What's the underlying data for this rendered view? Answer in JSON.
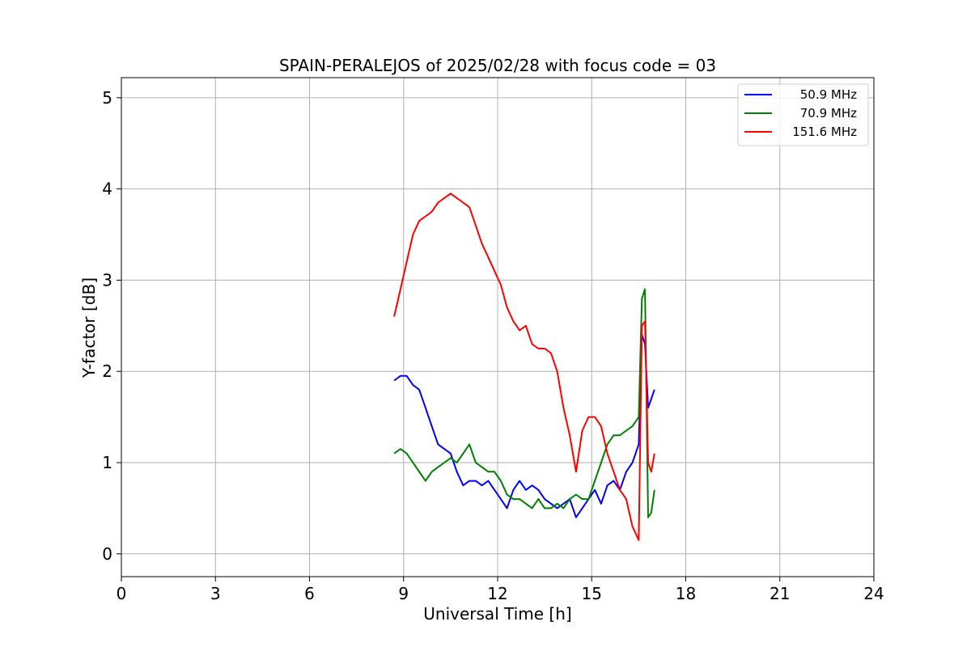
{
  "chart_data": {
    "type": "line",
    "title": "SPAIN-PERALEJOS of 2025/02/28 with focus code = 03",
    "xlabel": "Universal Time [h]",
    "ylabel": "Y-factor [dB]",
    "xlim": [
      0,
      24
    ],
    "ylim": [
      -0.25,
      5.22
    ],
    "xticks": [
      0,
      3,
      6,
      9,
      12,
      15,
      18,
      21,
      24
    ],
    "yticks": [
      0,
      1,
      2,
      3,
      4,
      5
    ],
    "grid": true,
    "legend_position": "top-right",
    "series": [
      {
        "name": "50.9 MHz",
        "color": "#0000ff",
        "x": [
          8.7,
          8.9,
          9.1,
          9.3,
          9.5,
          9.7,
          9.9,
          10.1,
          10.3,
          10.5,
          10.7,
          10.9,
          11.1,
          11.3,
          11.5,
          11.7,
          11.9,
          12.1,
          12.3,
          12.5,
          12.7,
          12.9,
          13.1,
          13.3,
          13.5,
          13.7,
          13.9,
          14.1,
          14.3,
          14.5,
          14.7,
          14.9,
          15.1,
          15.3,
          15.5,
          15.7,
          15.9,
          16.1,
          16.3,
          16.5,
          16.6,
          16.7,
          16.8,
          16.9,
          17.0
        ],
        "y": [
          1.9,
          1.95,
          1.95,
          1.85,
          1.8,
          1.6,
          1.4,
          1.2,
          1.15,
          1.1,
          0.9,
          0.75,
          0.8,
          0.8,
          0.75,
          0.8,
          0.7,
          0.6,
          0.5,
          0.7,
          0.8,
          0.7,
          0.75,
          0.7,
          0.6,
          0.55,
          0.5,
          0.55,
          0.6,
          0.4,
          0.5,
          0.6,
          0.7,
          0.55,
          0.75,
          0.8,
          0.7,
          0.9,
          1.0,
          1.2,
          2.4,
          2.3,
          1.6,
          1.7,
          1.8
        ]
      },
      {
        "name": "70.9 MHz",
        "color": "#008000",
        "x": [
          8.7,
          8.9,
          9.1,
          9.3,
          9.5,
          9.7,
          9.9,
          10.1,
          10.3,
          10.5,
          10.7,
          10.9,
          11.1,
          11.3,
          11.5,
          11.7,
          11.9,
          12.1,
          12.3,
          12.5,
          12.7,
          12.9,
          13.1,
          13.3,
          13.5,
          13.7,
          13.9,
          14.1,
          14.3,
          14.5,
          14.7,
          14.9,
          15.1,
          15.3,
          15.5,
          15.7,
          15.9,
          16.1,
          16.3,
          16.5,
          16.6,
          16.7,
          16.8,
          16.9,
          17.0
        ],
        "y": [
          1.1,
          1.15,
          1.1,
          1.0,
          0.9,
          0.8,
          0.9,
          0.95,
          1.0,
          1.05,
          1.0,
          1.1,
          1.2,
          1.0,
          0.95,
          0.9,
          0.9,
          0.8,
          0.65,
          0.6,
          0.6,
          0.55,
          0.5,
          0.6,
          0.5,
          0.5,
          0.55,
          0.5,
          0.6,
          0.65,
          0.6,
          0.6,
          0.8,
          1.0,
          1.2,
          1.3,
          1.3,
          1.35,
          1.4,
          1.5,
          2.8,
          2.9,
          0.4,
          0.45,
          0.7
        ]
      },
      {
        "name": "151.6 MHz",
        "color": "#ff0000",
        "x": [
          8.7,
          8.9,
          9.1,
          9.3,
          9.5,
          9.7,
          9.9,
          10.1,
          10.3,
          10.5,
          10.7,
          10.9,
          11.1,
          11.3,
          11.5,
          11.7,
          11.9,
          12.1,
          12.3,
          12.5,
          12.7,
          12.9,
          13.1,
          13.3,
          13.5,
          13.7,
          13.9,
          14.1,
          14.3,
          14.5,
          14.7,
          14.9,
          15.1,
          15.3,
          15.5,
          15.7,
          15.9,
          16.1,
          16.3,
          16.5,
          16.6,
          16.7,
          16.8,
          16.9,
          17.0
        ],
        "y": [
          2.6,
          2.9,
          3.2,
          3.5,
          3.65,
          3.7,
          3.75,
          3.85,
          3.9,
          3.95,
          3.9,
          3.85,
          3.8,
          3.6,
          3.4,
          3.25,
          3.1,
          2.95,
          2.7,
          2.55,
          2.45,
          2.5,
          2.3,
          2.25,
          2.25,
          2.2,
          2.0,
          1.6,
          1.3,
          0.9,
          1.35,
          1.5,
          1.5,
          1.4,
          1.1,
          0.9,
          0.7,
          0.6,
          0.3,
          0.15,
          2.5,
          2.55,
          1.0,
          0.9,
          1.1
        ]
      }
    ]
  }
}
